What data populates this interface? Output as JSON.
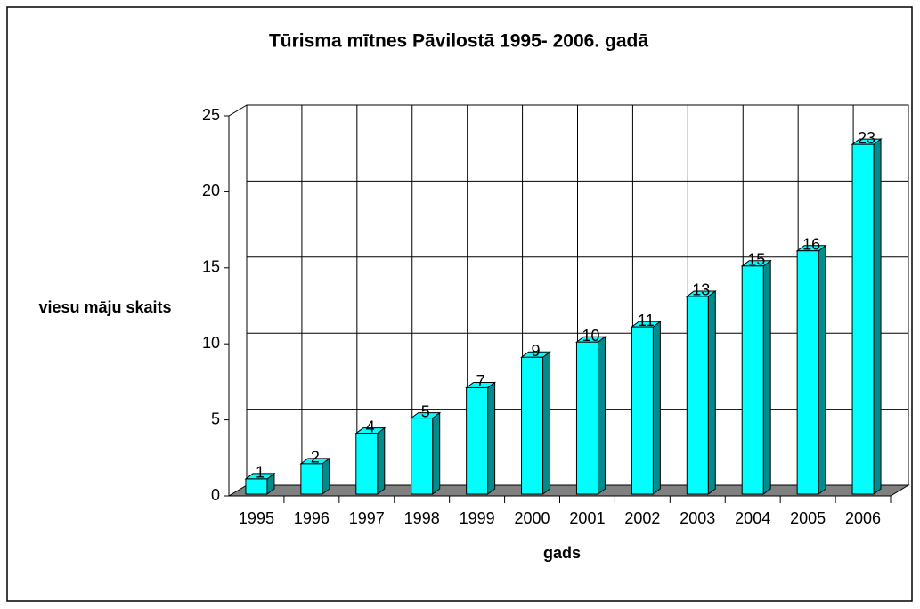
{
  "chart_data": {
    "type": "bar3d",
    "title": "Tūrisma mītnes Pāvilostā 1995- 2006. gadā",
    "x_label": "gads",
    "y_label": "viesu māju skaits",
    "categories": [
      "1995",
      "1996",
      "1997",
      "1998",
      "1999",
      "2000",
      "2001",
      "2002",
      "2003",
      "2004",
      "2005",
      "2006"
    ],
    "values": [
      1,
      2,
      4,
      5,
      7,
      9,
      10,
      11,
      13,
      15,
      16,
      23
    ],
    "color": "#00ffff",
    "ylim": [
      0,
      25
    ],
    "yticks": [
      0,
      5,
      10,
      15,
      20,
      25
    ],
    "grid": true
  }
}
